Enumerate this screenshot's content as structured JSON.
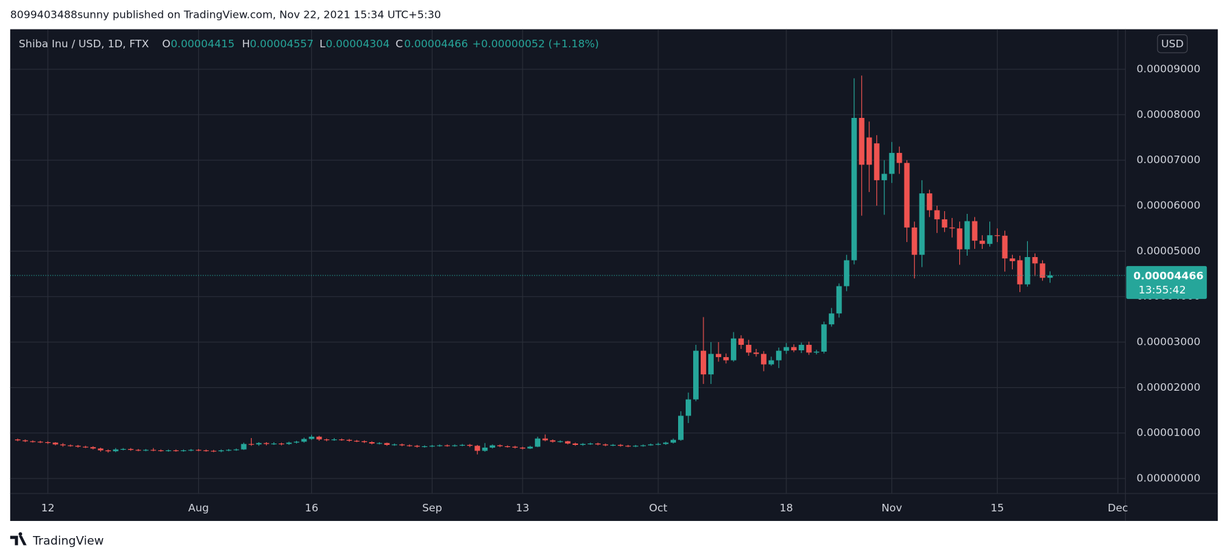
{
  "published": "8099403488sunny published on TradingView.com, Nov 22, 2021 15:34 UTC+5:30",
  "brand": "TradingView",
  "chart_data": {
    "type": "candlestick",
    "title": "Shiba Inu / USD, 1D, FTX",
    "legend": [
      {
        "label": "O",
        "value": "0.00004415"
      },
      {
        "label": "H",
        "value": "0.00004557"
      },
      {
        "label": "L",
        "value": "0.00004304"
      },
      {
        "label": "C",
        "value": "0.00004466"
      }
    ],
    "change": "+0.00000052 (+1.18%)",
    "currency": "USD",
    "last_price": {
      "value": 4.466e-05,
      "label": "0.00004466"
    },
    "countdown": "13:55:42",
    "up_color": "#26a69a",
    "down_color": "#ef5350",
    "grid": true,
    "x": [
      "Jul 8",
      "Jul 9",
      "Jul 10",
      "Jul 11",
      "Jul 12",
      "Jul 13",
      "Jul 14",
      "Jul 15",
      "Jul 16",
      "Jul 17",
      "Jul 18",
      "Jul 19",
      "Jul 20",
      "Jul 21",
      "Jul 22",
      "Jul 23",
      "Jul 24",
      "Jul 25",
      "Jul 26",
      "Jul 27",
      "Jul 28",
      "Jul 29",
      "Jul 30",
      "Jul 31",
      "Aug 1",
      "Aug 2",
      "Aug 3",
      "Aug 4",
      "Aug 5",
      "Aug 6",
      "Aug 7",
      "Aug 8",
      "Aug 9",
      "Aug 10",
      "Aug 11",
      "Aug 12",
      "Aug 13",
      "Aug 14",
      "Aug 15",
      "Aug 16",
      "Aug 17",
      "Aug 18",
      "Aug 19",
      "Aug 20",
      "Aug 21",
      "Aug 22",
      "Aug 23",
      "Aug 24",
      "Aug 25",
      "Aug 26",
      "Aug 27",
      "Aug 28",
      "Aug 29",
      "Aug 30",
      "Aug 31",
      "Sep 1",
      "Sep 2",
      "Sep 3",
      "Sep 4",
      "Sep 5",
      "Sep 6",
      "Sep 7",
      "Sep 8",
      "Sep 9",
      "Sep 10",
      "Sep 11",
      "Sep 12",
      "Sep 13",
      "Sep 14",
      "Sep 15",
      "Sep 16",
      "Sep 17",
      "Sep 18",
      "Sep 19",
      "Sep 20",
      "Sep 21",
      "Sep 22",
      "Sep 23",
      "Sep 24",
      "Sep 25",
      "Sep 26",
      "Sep 27",
      "Sep 28",
      "Sep 29",
      "Sep 30",
      "Oct 1",
      "Oct 2",
      "Oct 3",
      "Oct 4",
      "Oct 5",
      "Oct 6",
      "Oct 7",
      "Oct 8",
      "Oct 9",
      "Oct 10",
      "Oct 11",
      "Oct 12",
      "Oct 13",
      "Oct 14",
      "Oct 15",
      "Oct 16",
      "Oct 17",
      "Oct 18",
      "Oct 19",
      "Oct 20",
      "Oct 21",
      "Oct 22",
      "Oct 23",
      "Oct 24",
      "Oct 25",
      "Oct 26",
      "Oct 27",
      "Oct 28",
      "Oct 29",
      "Oct 30",
      "Oct 31",
      "Nov 1",
      "Nov 2",
      "Nov 3",
      "Nov 4",
      "Nov 5",
      "Nov 6",
      "Nov 7",
      "Nov 8",
      "Nov 9",
      "Nov 10",
      "Nov 11",
      "Nov 12",
      "Nov 13",
      "Nov 14",
      "Nov 15",
      "Nov 16",
      "Nov 17",
      "Nov 18",
      "Nov 19",
      "Nov 20",
      "Nov 21",
      "Nov 22"
    ],
    "open": [
      8.6e-06,
      8.4e-06,
      8.2e-06,
      8.1e-06,
      8e-06,
      7.9e-06,
      7.5e-06,
      7.3e-06,
      7.2e-06,
      7e-06,
      6.9e-06,
      6.6e-06,
      6.2e-06,
      6e-06,
      6.4e-06,
      6.5e-06,
      6.3e-06,
      6.2e-06,
      6.3e-06,
      6.2e-06,
      6.1e-06,
      6.2e-06,
      6.1e-06,
      6.2e-06,
      6.3e-06,
      6.2e-06,
      6.1e-06,
      6e-06,
      6.2e-06,
      6.3e-06,
      6.4e-06,
      7.6e-06,
      7.5e-06,
      7.8e-06,
      7.6e-06,
      7.7e-06,
      7.6e-06,
      7.9e-06,
      8.1e-06,
      8.7e-06,
      9.2e-06,
      8.6e-06,
      8.5e-06,
      8.6e-06,
      8.5e-06,
      8.3e-06,
      8.2e-06,
      8e-06,
      7.7e-06,
      7.8e-06,
      7.4e-06,
      7.5e-06,
      7.3e-06,
      7.2e-06,
      7e-06,
      7.1e-06,
      7.2e-06,
      7.3e-06,
      7.2e-06,
      7.3e-06,
      7.4e-06,
      7.2e-06,
      6.1e-06,
      6.8e-06,
      7.3e-06,
      7.1e-06,
      7e-06,
      6.8e-06,
      6.6e-06,
      7e-06,
      8.8e-06,
      8.4e-06,
      8.1e-06,
      8.2e-06,
      7.7e-06,
      7.4e-06,
      7.6e-06,
      7.7e-06,
      7.5e-06,
      7.3e-06,
      7.4e-06,
      7.2e-06,
      7.1e-06,
      7.2e-06,
      7.3e-06,
      7.5e-06,
      7.6e-06,
      7.9e-06,
      8.5e-06,
      1.38e-05,
      1.74e-05,
      2.81e-05,
      2.29e-05,
      2.74e-05,
      2.67e-05,
      2.6e-05,
      3.08e-05,
      2.94e-05,
      2.77e-05,
      2.74e-05,
      2.51e-05,
      2.6e-05,
      2.81e-05,
      2.89e-05,
      2.82e-05,
      2.94e-05,
      2.77e-05,
      2.79e-05,
      3.39e-05,
      3.63e-05,
      4.23e-05,
      4.8e-05,
      7.93e-05,
      7.5e-05,
      7.37e-05,
      6.56e-05,
      6.7e-05,
      7.16e-05,
      6.94e-05,
      5.52e-05,
      4.92e-05,
      6.27e-05,
      5.9e-05,
      5.7e-05,
      5.52e-05,
      5.5e-05,
      5.04e-05,
      5.66e-05,
      5.23e-05,
      5.16e-05,
      5.35e-05,
      5.34e-05,
      4.84e-05,
      4.8e-05,
      4.27e-05,
      4.87e-05,
      4.73e-05,
      4.415e-05
    ],
    "high": [
      8.8e-06,
      8.6e-06,
      8.4e-06,
      8.3e-06,
      8.2e-06,
      8e-06,
      7.8e-06,
      7.5e-06,
      7.4e-06,
      7.2e-06,
      7.1e-06,
      6.8e-06,
      6.4e-06,
      6.7e-06,
      6.7e-06,
      6.7e-06,
      6.5e-06,
      6.5e-06,
      6.7e-06,
      6.4e-06,
      6.4e-06,
      6.4e-06,
      6.4e-06,
      6.5e-06,
      6.5e-06,
      6.4e-06,
      6.3e-06,
      6.4e-06,
      6.5e-06,
      6.6e-06,
      7.9e-06,
      8.9e-06,
      8e-06,
      8e-06,
      8e-06,
      7.9e-06,
      8.1e-06,
      8.3e-06,
      9e-06,
      9.6e-06,
      9.4e-06,
      8.8e-06,
      8.9e-06,
      8.8e-06,
      8.7e-06,
      8.5e-06,
      8.4e-06,
      8.2e-06,
      8e-06,
      7.9e-06,
      7.7e-06,
      7.7e-06,
      7.5e-06,
      7.4e-06,
      7.3e-06,
      7.4e-06,
      7.5e-06,
      7.5e-06,
      7.5e-06,
      7.6e-06,
      7.6e-06,
      7.4e-06,
      7.8e-06,
      7.5e-06,
      7.5e-06,
      7.3e-06,
      7.2e-06,
      7e-06,
      7.2e-06,
      9.2e-06,
      9.7e-06,
      8.6e-06,
      8.4e-06,
      8.3e-06,
      7.9e-06,
      7.8e-06,
      7.9e-06,
      7.9e-06,
      7.7e-06,
      7.6e-06,
      7.6e-06,
      7.4e-06,
      7.4e-06,
      7.5e-06,
      7.7e-06,
      7.9e-06,
      8.1e-06,
      8.8e-06,
      1.48e-05,
      1.89e-05,
      2.94e-05,
      3.55e-05,
      3e-05,
      3e-05,
      2.75e-05,
      3.22e-05,
      3.15e-05,
      3.05e-05,
      2.85e-05,
      2.8e-05,
      2.68e-05,
      2.88e-05,
      2.98e-05,
      2.95e-05,
      2.99e-05,
      3.01e-05,
      2.83e-05,
      3.45e-05,
      3.75e-05,
      4.29e-05,
      4.92e-05,
      8.8e-05,
      8.86e-05,
      7.85e-05,
      7.55e-05,
      7e-05,
      7.4e-05,
      7.3e-05,
      7e-05,
      5.65e-05,
      6.56e-05,
      6.35e-05,
      6e-05,
      5.88e-05,
      5.73e-05,
      5.65e-05,
      5.82e-05,
      5.75e-05,
      5.35e-05,
      5.65e-05,
      5.5e-05,
      5.45e-05,
      4.92e-05,
      4.9e-05,
      5.22e-05,
      4.95e-05,
      4.8e-05,
      4.557e-05
    ],
    "low": [
      8.2e-06,
      8e-06,
      7.9e-06,
      7.8e-06,
      7.6e-06,
      7.3e-06,
      7e-06,
      7e-06,
      6.8e-06,
      6.7e-06,
      6.4e-06,
      5.9e-06,
      5.7e-06,
      5.8e-06,
      6.2e-06,
      6.1e-06,
      6e-06,
      6e-06,
      6e-06,
      5.9e-06,
      5.9e-06,
      5.9e-06,
      5.9e-06,
      6e-06,
      6e-06,
      5.9e-06,
      5.8e-06,
      5.8e-06,
      6e-06,
      6.1e-06,
      6.3e-06,
      7.2e-06,
      7.2e-06,
      7.3e-06,
      7.4e-06,
      7.3e-06,
      7.4e-06,
      7.7e-06,
      7.9e-06,
      8.5e-06,
      8.3e-06,
      8.2e-06,
      8.3e-06,
      8.3e-06,
      8.1e-06,
      8e-06,
      7.8e-06,
      7.5e-06,
      7.5e-06,
      7.2e-06,
      7.2e-06,
      7.1e-06,
      7e-06,
      6.8e-06,
      6.8e-06,
      6.9e-06,
      7e-06,
      7e-06,
      7e-06,
      7.1e-06,
      6.9e-06,
      5.3e-06,
      5.9e-06,
      6.6e-06,
      6.9e-06,
      6.8e-06,
      6.6e-06,
      6.4e-06,
      6.5e-06,
      6.9e-06,
      8.2e-06,
      7.9e-06,
      7.9e-06,
      7.5e-06,
      7.2e-06,
      7.2e-06,
      7.4e-06,
      7.3e-06,
      7.1e-06,
      7.1e-06,
      7e-06,
      6.9e-06,
      6.9e-06,
      7e-06,
      7.2e-06,
      7.3e-06,
      7.4e-06,
      7.7e-06,
      8.3e-06,
      1.22e-05,
      1.7e-05,
      2.08e-05,
      2.08e-05,
      2.57e-05,
      2.53e-05,
      2.57e-05,
      2.85e-05,
      2.7e-05,
      2.68e-05,
      2.36e-05,
      2.48e-05,
      2.43e-05,
      2.74e-05,
      2.78e-05,
      2.76e-05,
      2.72e-05,
      2.73e-05,
      2.75e-05,
      3.34e-05,
      3.54e-05,
      4.12e-05,
      4.71e-05,
      5.78e-05,
      6.3e-05,
      6e-05,
      5.8e-05,
      6.5e-05,
      6.7e-05,
      5.2e-05,
      4.4e-05,
      4.65e-05,
      5.75e-05,
      5.4e-05,
      5.42e-05,
      5.3e-05,
      4.7e-05,
      4.9e-05,
      5.05e-05,
      5.05e-05,
      5.1e-05,
      5.2e-05,
      4.55e-05,
      4.6e-05,
      4.1e-05,
      4.22e-05,
      4.45e-05,
      4.35e-05,
      4.304e-05
    ],
    "close": [
      8.4e-06,
      8.2e-06,
      8.1e-06,
      8e-06,
      7.9e-06,
      7.5e-06,
      7.3e-06,
      7.2e-06,
      7e-06,
      6.9e-06,
      6.6e-06,
      6.2e-06,
      6e-06,
      6.4e-06,
      6.5e-06,
      6.3e-06,
      6.2e-06,
      6.3e-06,
      6.2e-06,
      6.1e-06,
      6.2e-06,
      6.1e-06,
      6.2e-06,
      6.3e-06,
      6.2e-06,
      6.1e-06,
      6e-06,
      6.2e-06,
      6.3e-06,
      6.4e-06,
      7.6e-06,
      7.5e-06,
      7.8e-06,
      7.6e-06,
      7.7e-06,
      7.6e-06,
      7.9e-06,
      8.1e-06,
      8.7e-06,
      9.2e-06,
      8.6e-06,
      8.5e-06,
      8.6e-06,
      8.5e-06,
      8.3e-06,
      8.2e-06,
      8e-06,
      7.7e-06,
      7.8e-06,
      7.4e-06,
      7.5e-06,
      7.3e-06,
      7.2e-06,
      7e-06,
      7.1e-06,
      7.2e-06,
      7.3e-06,
      7.2e-06,
      7.3e-06,
      7.4e-06,
      7.2e-06,
      6.1e-06,
      6.8e-06,
      7.3e-06,
      7.1e-06,
      7e-06,
      6.8e-06,
      6.6e-06,
      7e-06,
      8.8e-06,
      8.4e-06,
      8.1e-06,
      8.2e-06,
      7.7e-06,
      7.4e-06,
      7.6e-06,
      7.7e-06,
      7.5e-06,
      7.3e-06,
      7.4e-06,
      7.2e-06,
      7.1e-06,
      7.2e-06,
      7.3e-06,
      7.5e-06,
      7.6e-06,
      7.9e-06,
      8.5e-06,
      1.38e-05,
      1.74e-05,
      2.81e-05,
      2.29e-05,
      2.74e-05,
      2.67e-05,
      2.6e-05,
      3.08e-05,
      2.94e-05,
      2.77e-05,
      2.74e-05,
      2.51e-05,
      2.6e-05,
      2.81e-05,
      2.89e-05,
      2.82e-05,
      2.94e-05,
      2.77e-05,
      2.79e-05,
      3.39e-05,
      3.63e-05,
      4.23e-05,
      4.8e-05,
      7.93e-05,
      6.9e-05,
      6.9e-05,
      6.56e-05,
      6.7e-05,
      7.16e-05,
      6.94e-05,
      5.52e-05,
      4.92e-05,
      6.27e-05,
      5.9e-05,
      5.7e-05,
      5.52e-05,
      5.5e-05,
      5.04e-05,
      5.66e-05,
      5.23e-05,
      5.16e-05,
      5.35e-05,
      5.34e-05,
      4.84e-05,
      4.78e-05,
      4.27e-05,
      4.87e-05,
      4.73e-05,
      4.414e-05,
      4.466e-05
    ],
    "xlim": [
      "Jul 7",
      "Dec 2"
    ],
    "xticks": [
      {
        "value": "Jul 12",
        "label": "12"
      },
      {
        "value": "Aug 1",
        "label": "Aug"
      },
      {
        "value": "Aug 16",
        "label": "16"
      },
      {
        "value": "Sep 1",
        "label": "Sep"
      },
      {
        "value": "Sep 13",
        "label": "13"
      },
      {
        "value": "Oct 1",
        "label": "Oct"
      },
      {
        "value": "Oct 18",
        "label": "18"
      },
      {
        "value": "Nov 1",
        "label": "Nov"
      },
      {
        "value": "Nov 15",
        "label": "15"
      },
      {
        "value": "Dec 1",
        "label": "Dec"
      }
    ],
    "ylim": [
      -3.3e-06,
      9.88e-05
    ],
    "yticks": [
      {
        "value": 0,
        "label": "0.00000000"
      },
      {
        "value": 1e-05,
        "label": "0.00001000"
      },
      {
        "value": 2e-05,
        "label": "0.00002000"
      },
      {
        "value": 3e-05,
        "label": "0.00003000"
      },
      {
        "value": 4e-05,
        "label": "0.00004000"
      },
      {
        "value": 5e-05,
        "label": "0.00005000"
      },
      {
        "value": 6e-05,
        "label": "0.00006000"
      },
      {
        "value": 7e-05,
        "label": "0.00007000"
      },
      {
        "value": 8e-05,
        "label": "0.00008000"
      },
      {
        "value": 9e-05,
        "label": "0.00009000"
      }
    ]
  }
}
